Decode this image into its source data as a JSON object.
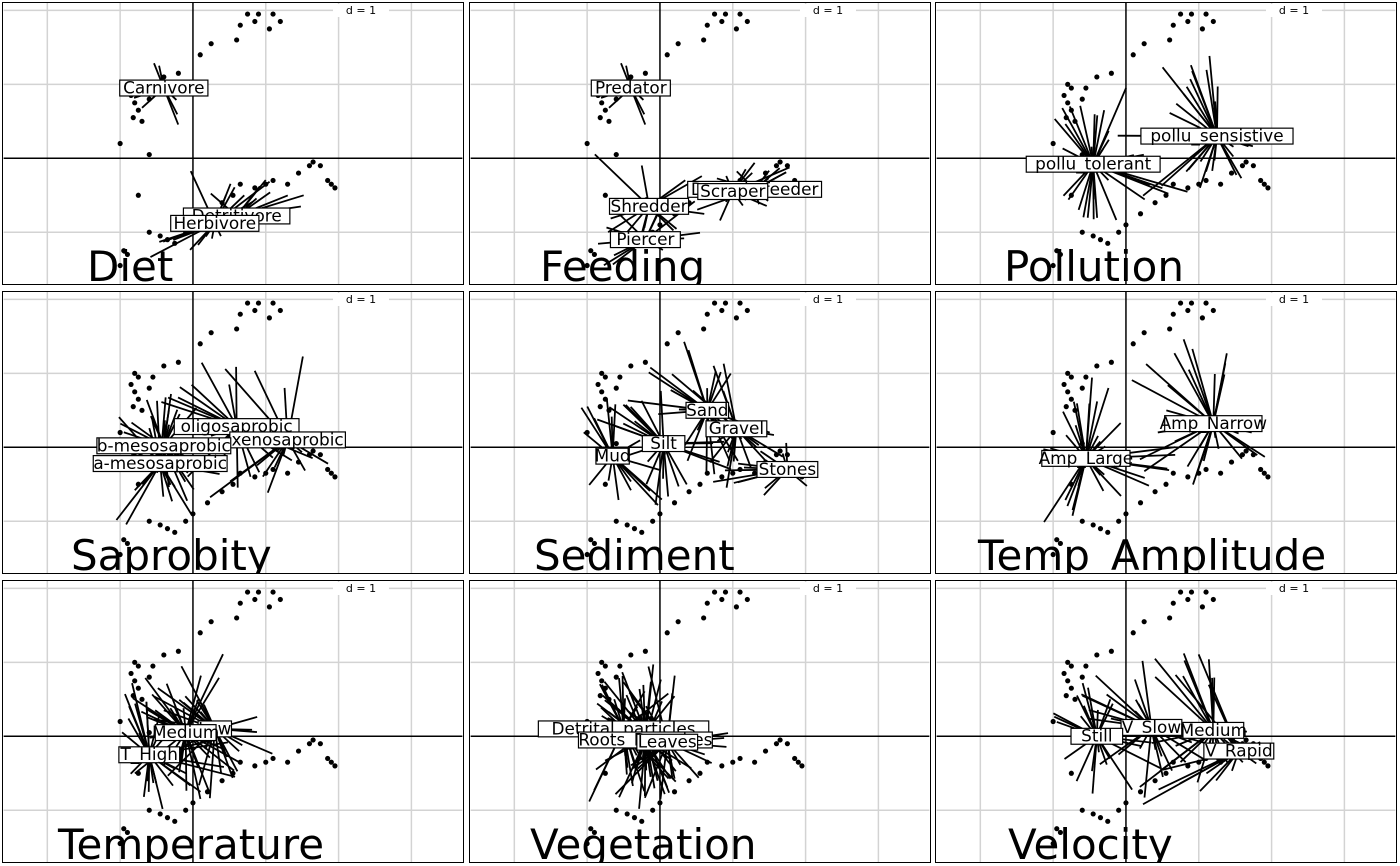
{
  "scale_text": "d = 1",
  "chart_data": {
    "type": "scatter",
    "description_layout": "3x3 grid of scatter panels with star lines to category centroids",
    "grid": true,
    "xlim": [
      -2.6,
      3.7
    ],
    "ylim": [
      -1.7,
      2.1
    ],
    "points": [
      [
        -0.8,
        1.0
      ],
      [
        -0.75,
        0.95
      ],
      [
        -0.85,
        0.85
      ],
      [
        -0.8,
        0.75
      ],
      [
        -0.75,
        0.65
      ],
      [
        -0.82,
        0.55
      ],
      [
        -0.7,
        0.5
      ],
      [
        -0.6,
        0.8
      ],
      [
        -0.55,
        0.95
      ],
      [
        -0.4,
        1.1
      ],
      [
        -0.2,
        1.15
      ],
      [
        0.1,
        1.4
      ],
      [
        0.25,
        1.55
      ],
      [
        0.6,
        1.6
      ],
      [
        0.65,
        1.8
      ],
      [
        0.75,
        1.95
      ],
      [
        0.85,
        1.85
      ],
      [
        0.9,
        1.95
      ],
      [
        1.05,
        1.75
      ],
      [
        1.1,
        1.95
      ],
      [
        1.2,
        1.85
      ],
      [
        -0.75,
        -0.5
      ],
      [
        -0.6,
        -1.0
      ],
      [
        -0.45,
        -1.05
      ],
      [
        -0.35,
        -1.1
      ],
      [
        -0.25,
        -1.15
      ],
      [
        -0.1,
        -1.0
      ],
      [
        0.0,
        -0.9
      ],
      [
        0.2,
        -0.75
      ],
      [
        0.4,
        -0.6
      ],
      [
        0.55,
        -0.5
      ],
      [
        0.65,
        -0.35
      ],
      [
        0.85,
        -0.4
      ],
      [
        1.0,
        -0.35
      ],
      [
        1.1,
        -0.3
      ],
      [
        1.3,
        -0.35
      ],
      [
        1.45,
        -0.2
      ],
      [
        1.6,
        -0.1
      ],
      [
        1.65,
        -0.05
      ],
      [
        1.75,
        -0.1
      ],
      [
        1.85,
        -0.3
      ],
      [
        1.9,
        -0.35
      ],
      [
        1.95,
        -0.4
      ],
      [
        -0.9,
        -1.3
      ],
      [
        -1.0,
        -1.45
      ],
      [
        -0.95,
        -1.25
      ],
      [
        -0.6,
        0.05
      ],
      [
        -1.0,
        0.2
      ]
    ],
    "panels": [
      {
        "title": "Diet",
        "categories": [
          {
            "label": "Carnivore",
            "x": -0.4,
            "y": 0.95,
            "n": 14
          },
          {
            "label": "Detritivore",
            "x": 0.6,
            "y": -0.78,
            "n": 18
          },
          {
            "label": "Herbivore",
            "x": 0.3,
            "y": -0.88,
            "n": 18
          }
        ]
      },
      {
        "title": "Feeding",
        "categories": [
          {
            "label": "Predator",
            "x": -0.4,
            "y": 0.95,
            "n": 14
          },
          {
            "label": "Deposit_feeder",
            "x": 1.3,
            "y": -0.42,
            "n": 14
          },
          {
            "label": "Scraper",
            "x": 1.0,
            "y": -0.45,
            "n": 14
          },
          {
            "label": "Shredder",
            "x": -0.15,
            "y": -0.65,
            "n": 18
          },
          {
            "label": "Piercer",
            "x": -0.2,
            "y": -1.1,
            "n": 14
          }
        ]
      },
      {
        "title": "Pollution",
        "categories": [
          {
            "label": "pollu_tolerant",
            "x": -0.45,
            "y": -0.08,
            "n": 34
          },
          {
            "label": "pollu_sensistive",
            "x": 1.25,
            "y": 0.3,
            "n": 30
          }
        ]
      },
      {
        "title": "Saprobity",
        "categories": [
          {
            "label": "oligosaprobic",
            "x": 0.6,
            "y": 0.28,
            "n": 28
          },
          {
            "label": "xenosaprobic",
            "x": 1.3,
            "y": 0.1,
            "n": 20
          },
          {
            "label": "b-mesosaprobic",
            "x": -0.4,
            "y": 0.02,
            "n": 24
          },
          {
            "label": "a-mesosaprobic",
            "x": -0.45,
            "y": -0.22,
            "n": 24
          }
        ]
      },
      {
        "title": "Sediment",
        "categories": [
          {
            "label": "Sand",
            "x": 0.65,
            "y": 0.5,
            "n": 24
          },
          {
            "label": "Gravel",
            "x": 1.05,
            "y": 0.25,
            "n": 20
          },
          {
            "label": "Silt",
            "x": 0.05,
            "y": 0.05,
            "n": 24
          },
          {
            "label": "Mud",
            "x": -0.65,
            "y": -0.12,
            "n": 20
          },
          {
            "label": "Stones",
            "x": 1.75,
            "y": -0.3,
            "n": 16
          }
        ]
      },
      {
        "title": "Temp_Amplitude",
        "categories": [
          {
            "label": "Amp_Narrow",
            "x": 1.2,
            "y": 0.32,
            "n": 30
          },
          {
            "label": "Amp_Large",
            "x": -0.55,
            "y": -0.15,
            "n": 34
          }
        ]
      },
      {
        "title": "Temperature",
        "categories": [
          {
            "label": "Low",
            "x": 0.3,
            "y": 0.1,
            "n": 30
          },
          {
            "label": "Medium",
            "x": -0.1,
            "y": 0.05,
            "n": 30
          },
          {
            "label": "T_High",
            "x": -0.6,
            "y": -0.25,
            "n": 30
          }
        ]
      },
      {
        "title": "Vegetation",
        "categories": [
          {
            "label": "Detritus",
            "x": -0.2,
            "y": 0.05,
            "n": 30
          },
          {
            "label": "Detrital_particles",
            "x": -0.5,
            "y": 0.1,
            "n": 30
          },
          {
            "label": "Roots_Branches",
            "x": -0.2,
            "y": -0.05,
            "n": 30
          },
          {
            "label": "Leaves",
            "x": 0.1,
            "y": -0.08,
            "n": 30
          }
        ]
      },
      {
        "title": "Velocity",
        "categories": [
          {
            "label": "V_Slow",
            "x": 0.35,
            "y": 0.12,
            "n": 28
          },
          {
            "label": "Medium",
            "x": 1.2,
            "y": 0.08,
            "n": 26
          },
          {
            "label": "Still",
            "x": -0.4,
            "y": 0.0,
            "n": 22
          },
          {
            "label": "V_Rapid",
            "x": 1.55,
            "y": -0.2,
            "n": 22
          }
        ]
      }
    ]
  }
}
